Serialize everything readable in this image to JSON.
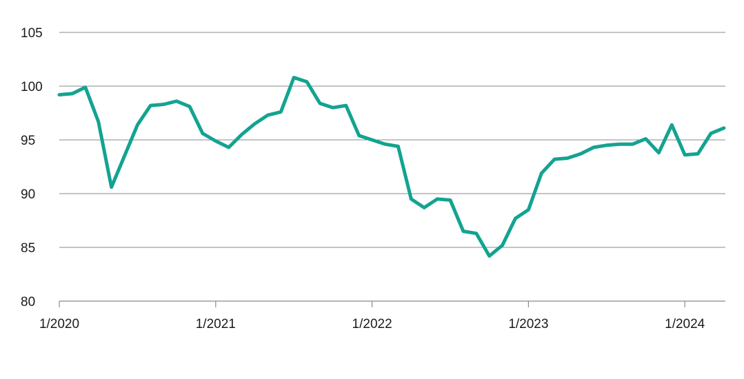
{
  "chart_data": {
    "type": "line",
    "title": "",
    "xlabel": "",
    "ylabel": "",
    "ylim": [
      80,
      105
    ],
    "yticks": [
      80,
      85,
      90,
      95,
      100,
      105
    ],
    "xticks": [
      {
        "label": "1/2020",
        "month_index": 0
      },
      {
        "label": "1/2021",
        "month_index": 12
      },
      {
        "label": "1/2022",
        "month_index": 24
      },
      {
        "label": "1/2023",
        "month_index": 36
      },
      {
        "label": "1/2024",
        "month_index": 48
      }
    ],
    "grid": "horizontal",
    "line_color": "#13a391",
    "x": [
      "2020-01",
      "2020-02",
      "2020-03",
      "2020-04",
      "2020-05",
      "2020-06",
      "2020-07",
      "2020-08",
      "2020-09",
      "2020-10",
      "2020-11",
      "2020-12",
      "2021-01",
      "2021-02",
      "2021-03",
      "2021-04",
      "2021-05",
      "2021-06",
      "2021-07",
      "2021-08",
      "2021-09",
      "2021-10",
      "2021-11",
      "2021-12",
      "2022-01",
      "2022-02",
      "2022-03",
      "2022-04",
      "2022-05",
      "2022-06",
      "2022-07",
      "2022-08",
      "2022-09",
      "2022-10",
      "2022-11",
      "2022-12",
      "2023-01",
      "2023-02",
      "2023-03",
      "2023-04",
      "2023-05",
      "2023-06",
      "2023-07",
      "2023-08",
      "2023-09",
      "2023-10",
      "2023-11",
      "2023-12",
      "2024-01",
      "2024-02",
      "2024-03",
      "2024-04"
    ],
    "values": [
      99.2,
      99.3,
      99.9,
      96.7,
      90.6,
      93.5,
      96.4,
      98.2,
      98.3,
      98.6,
      98.1,
      95.6,
      94.9,
      94.3,
      95.5,
      96.5,
      97.3,
      97.6,
      100.8,
      100.4,
      98.4,
      98.0,
      98.2,
      95.4,
      95.0,
      94.6,
      94.4,
      89.5,
      88.7,
      89.5,
      89.4,
      86.5,
      86.3,
      84.2,
      85.2,
      87.7,
      88.5,
      91.9,
      93.2,
      93.3,
      93.7,
      94.3,
      94.5,
      94.6,
      94.6,
      95.1,
      93.8,
      96.4,
      93.6,
      93.7,
      95.6,
      96.1
    ]
  }
}
